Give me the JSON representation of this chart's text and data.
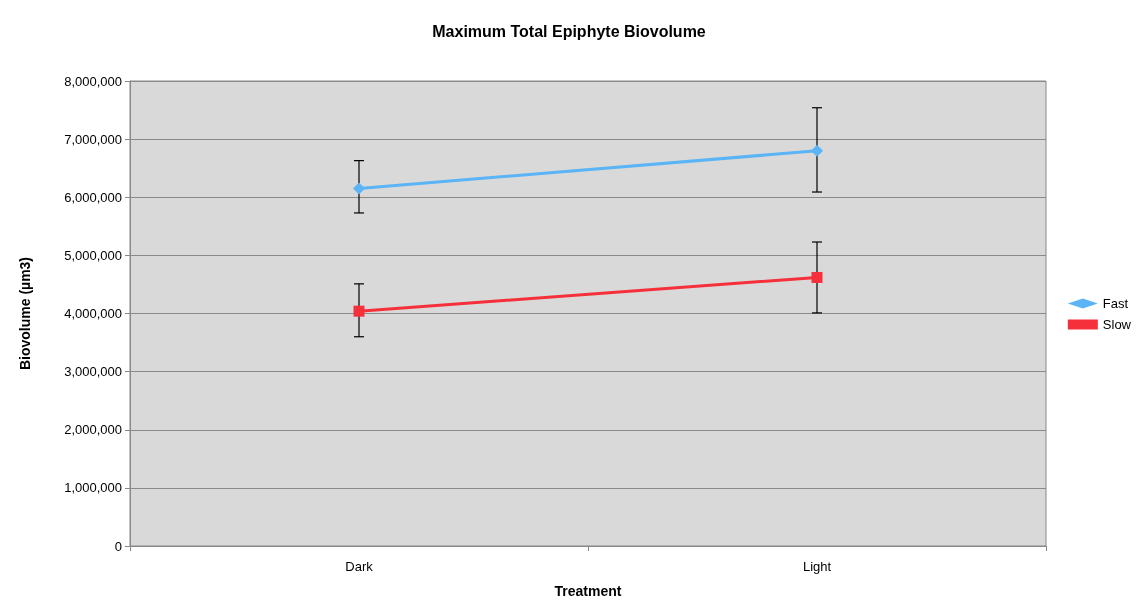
{
  "chart_data": {
    "type": "line",
    "title": "Maximum Total Epiphyte Biovolume",
    "xlabel": "Treatment",
    "ylabel": "Biovolume (µm3)",
    "categories": [
      "Dark",
      "Light"
    ],
    "series": [
      {
        "name": "Fast",
        "color": "#5ab4f5",
        "marker": "diamond",
        "values": [
          6150000,
          6800000
        ],
        "errors": [
          [
            5730000,
            6630000
          ],
          [
            6090000,
            7540000
          ]
        ]
      },
      {
        "name": "Slow",
        "color": "#f5303a",
        "marker": "square",
        "values": [
          4040000,
          4620000
        ],
        "errors": [
          [
            3600000,
            4510000
          ],
          [
            4010000,
            5230000
          ]
        ]
      }
    ],
    "ylim": [
      0,
      8000000
    ],
    "yticks": [
      0,
      {
        "value": 1000000,
        "label": "1,000,000"
      },
      {
        "value": 2000000,
        "label": "2,000,000"
      },
      {
        "value": 3000000,
        "label": "3,000,000"
      },
      {
        "value": 4000000,
        "label": "4,000,000"
      },
      {
        "value": 5000000,
        "label": "5,000,000"
      },
      {
        "value": 6000000,
        "label": "6,000,000"
      },
      {
        "value": 7000000,
        "label": "7,000,000"
      },
      {
        "value": 8000000,
        "label": "8,000,000"
      }
    ],
    "grid": "y",
    "legend": "right",
    "line_style": "solid"
  }
}
